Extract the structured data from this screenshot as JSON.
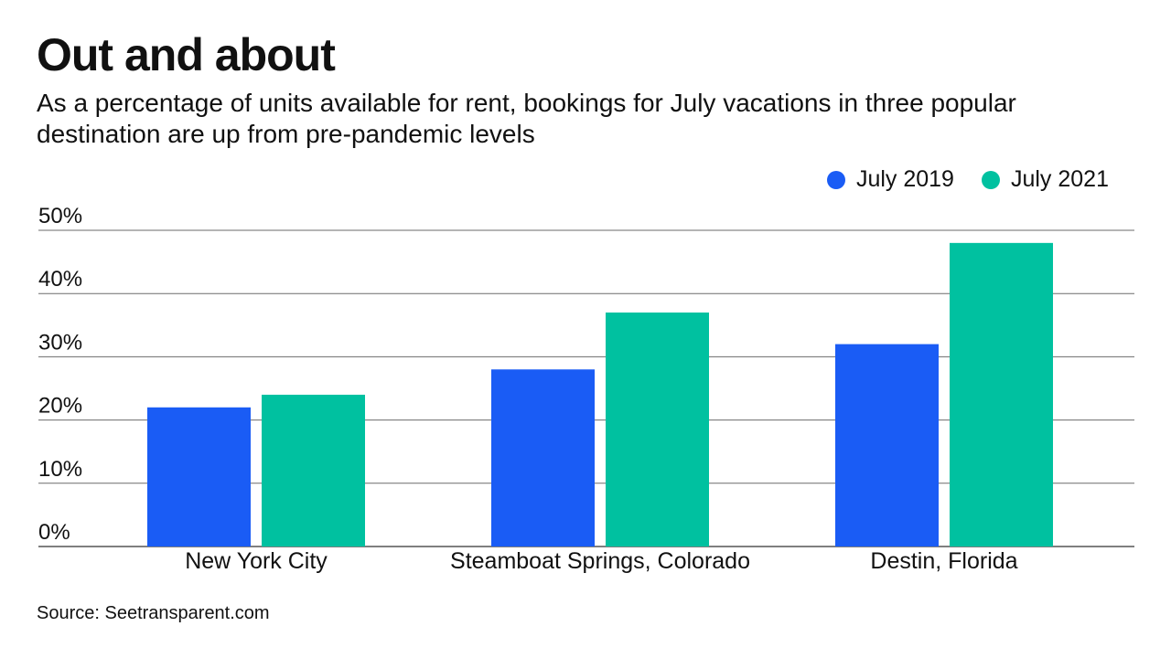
{
  "title": "Out and about",
  "subtitle": "As a percentage of units available for rent, bookings for July vacations in three popular destination are up from pre-pandemic levels",
  "source": "Source: Seetransparent.com",
  "colors": {
    "july_2019": "#1a5cf5",
    "july_2021": "#00c1a0"
  },
  "chart_data": {
    "type": "bar",
    "categories": [
      "New York City",
      "Steamboat Springs, Colorado",
      "Destin, Florida"
    ],
    "series": [
      {
        "name": "July 2019",
        "values": [
          22,
          28,
          32
        ]
      },
      {
        "name": "July 2021",
        "values": [
          24,
          37,
          48
        ]
      }
    ],
    "yticks": [
      "0%",
      "10%",
      "20%",
      "30%",
      "40%",
      "50%"
    ],
    "ytick_values": [
      0,
      10,
      20,
      30,
      40,
      50
    ],
    "ylim": [
      0,
      50
    ],
    "grid": true,
    "legend_position": "top-right"
  }
}
